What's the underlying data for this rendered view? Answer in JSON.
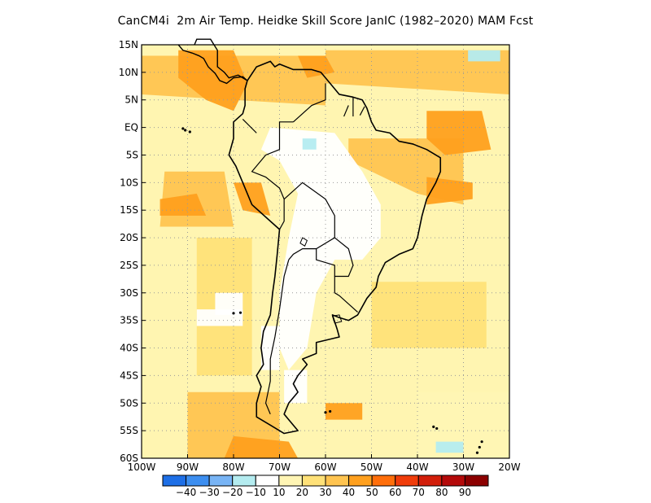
{
  "title": "CanCM4i  2m Air Temp. Heidke Skill Score JanIC (1982–2020) MAM Fcst",
  "map": {
    "lat_labels": [
      "15N",
      "10N",
      "5N",
      "EQ",
      "5S",
      "10S",
      "15S",
      "20S",
      "25S",
      "30S",
      "35S",
      "40S",
      "45S",
      "50S",
      "55S",
      "60S"
    ],
    "lat_values": [
      15,
      10,
      5,
      0,
      -5,
      -10,
      -15,
      -20,
      -25,
      -30,
      -35,
      -40,
      -45,
      -50,
      -55,
      -60
    ],
    "lon_labels": [
      "100W",
      "90W",
      "80W",
      "70W",
      "60W",
      "50W",
      "40W",
      "30W",
      "20W"
    ],
    "lon_values": [
      -100,
      -90,
      -80,
      -70,
      -60,
      -50,
      -40,
      -30,
      -20
    ],
    "lon_range": [
      -100,
      -20
    ],
    "lat_range": [
      -60,
      15
    ]
  },
  "colorbar": {
    "labels": [
      "−40",
      "−30",
      "−20",
      "−10",
      "10",
      "20",
      "30",
      "40",
      "50",
      "60",
      "70",
      "80",
      "90"
    ],
    "colors": [
      "#1e6fe6",
      "#3c8ef0",
      "#78b4f5",
      "#b4ecf0",
      "#ffffff",
      "#fff5b4",
      "#ffe178",
      "#ffc450",
      "#ffa01e",
      "#ff6e0a",
      "#f03c0a",
      "#d21e0a",
      "#b40a0a",
      "#8c0000"
    ]
  }
}
